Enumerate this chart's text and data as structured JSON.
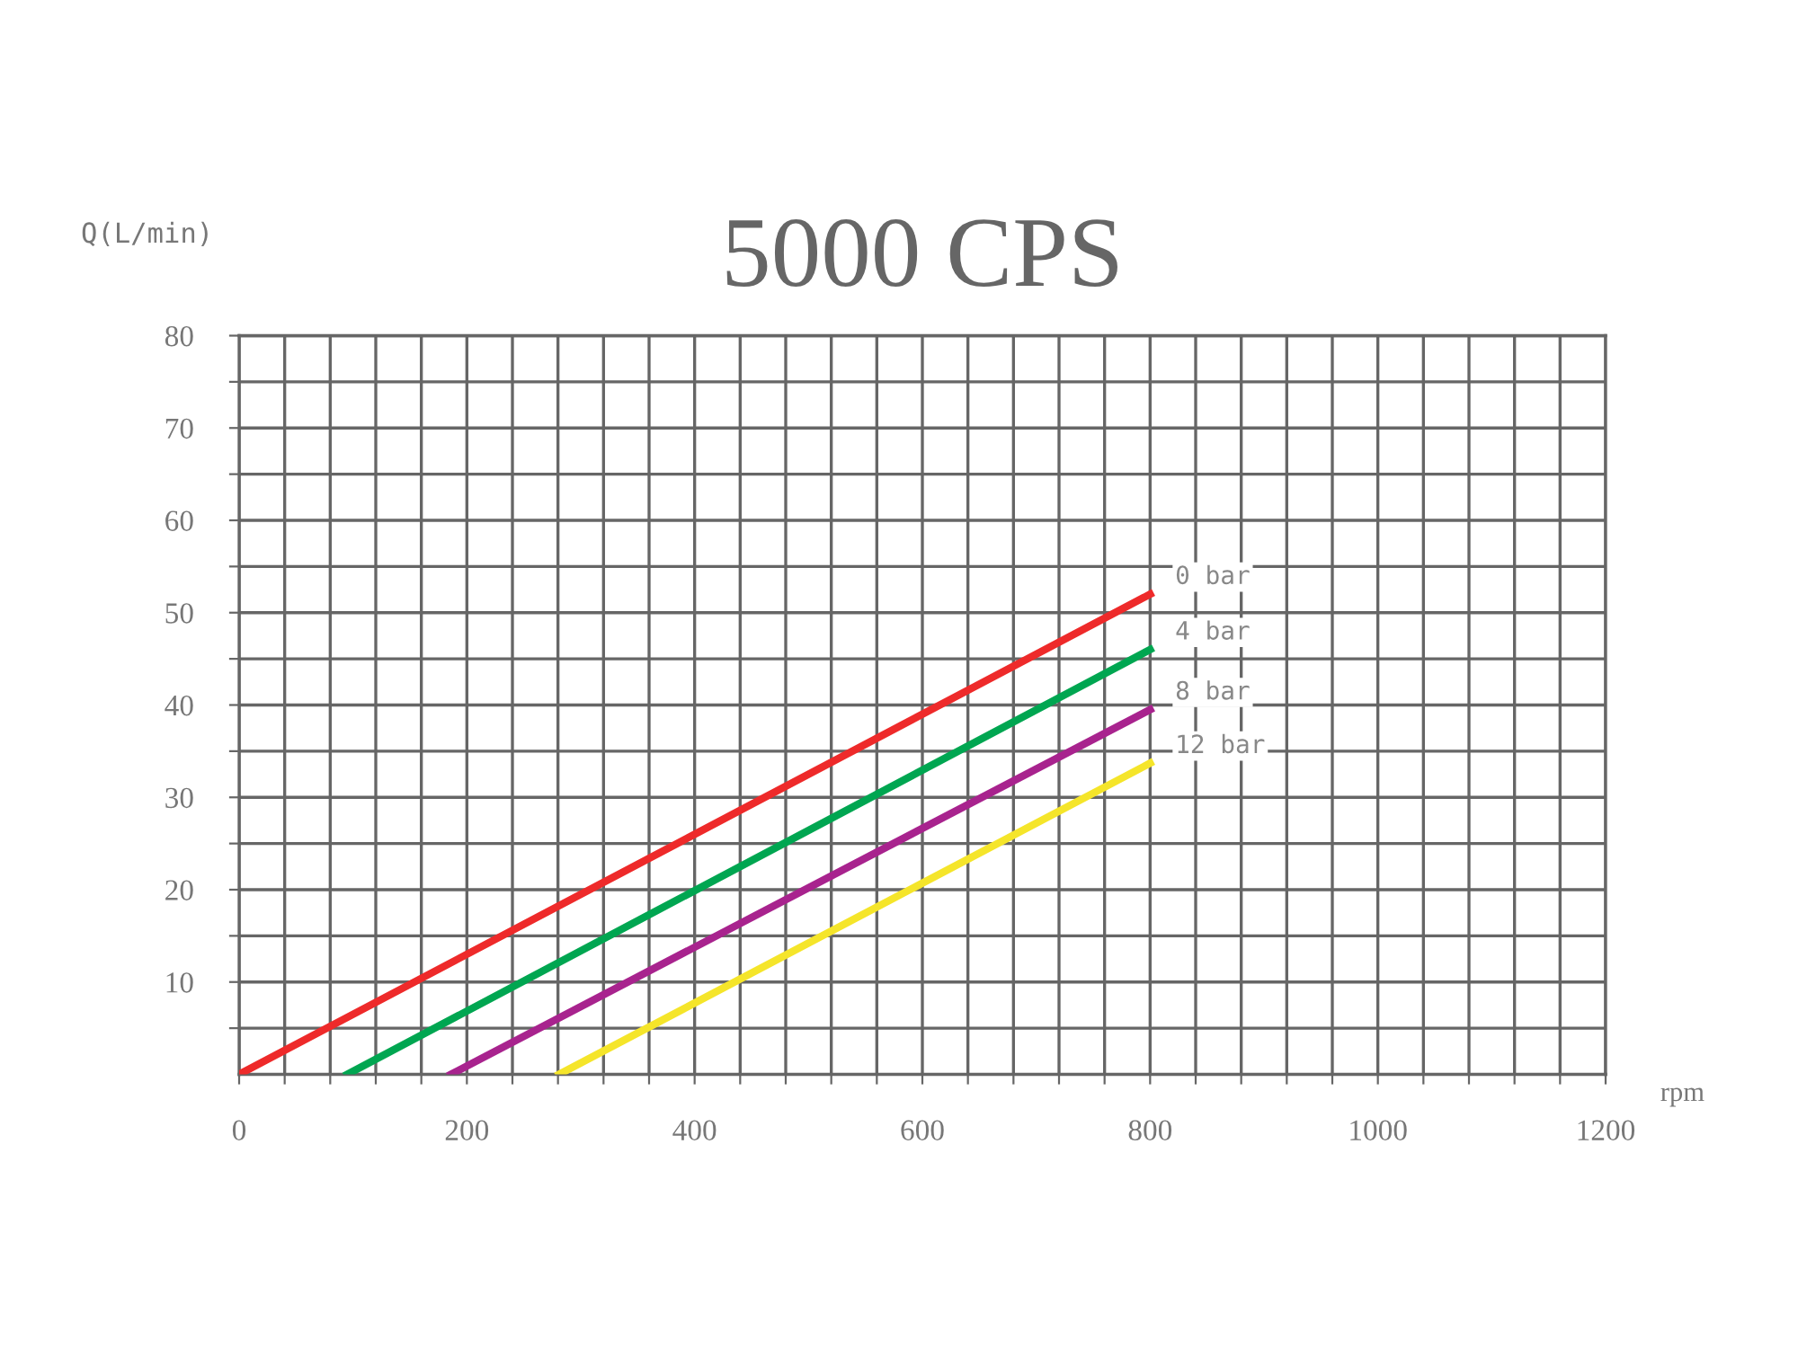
{
  "chart_data": {
    "type": "line",
    "title": "5000 CPS",
    "xlabel": "rpm",
    "ylabel": "Q(L/min)",
    "series": [
      {
        "name": "0 bar",
        "color": "#ee2a2a",
        "x": [
          0,
          800
        ],
        "values": [
          0,
          52
        ]
      },
      {
        "name": "4 bar",
        "color": "#00a651",
        "x": [
          95,
          800
        ],
        "values": [
          0,
          46
        ]
      },
      {
        "name": "8 bar",
        "color": "#a8238e",
        "x": [
          186,
          800
        ],
        "values": [
          0,
          39.5
        ]
      },
      {
        "name": "12 bar",
        "color": "#f5e52a",
        "x": [
          281,
          800
        ],
        "values": [
          0,
          33.7
        ]
      }
    ],
    "xlim": [
      0,
      1200
    ],
    "ylim": [
      0,
      80
    ],
    "xticks": [
      {
        "value": 0,
        "label": "0"
      },
      {
        "value": 40,
        "label": null
      },
      {
        "value": 80,
        "label": null
      },
      {
        "value": 120,
        "label": null
      },
      {
        "value": 160,
        "label": null
      },
      {
        "value": 200,
        "label": "200"
      },
      {
        "value": 240,
        "label": null
      },
      {
        "value": 280,
        "label": null
      },
      {
        "value": 320,
        "label": null
      },
      {
        "value": 360,
        "label": null
      },
      {
        "value": 400,
        "label": "400"
      },
      {
        "value": 440,
        "label": null
      },
      {
        "value": 480,
        "label": null
      },
      {
        "value": 520,
        "label": null
      },
      {
        "value": 560,
        "label": null
      },
      {
        "value": 600,
        "label": "600"
      },
      {
        "value": 640,
        "label": null
      },
      {
        "value": 680,
        "label": null
      },
      {
        "value": 720,
        "label": null
      },
      {
        "value": 760,
        "label": null
      },
      {
        "value": 800,
        "label": "800"
      },
      {
        "value": 840,
        "label": null
      },
      {
        "value": 880,
        "label": null
      },
      {
        "value": 920,
        "label": null
      },
      {
        "value": 960,
        "label": null
      },
      {
        "value": 1000,
        "label": "1000"
      },
      {
        "value": 1040,
        "label": null
      },
      {
        "value": 1080,
        "label": null
      },
      {
        "value": 1120,
        "label": null
      },
      {
        "value": 1160,
        "label": null
      },
      {
        "value": 1200,
        "label": "1200"
      }
    ],
    "yticks": [
      {
        "value": 5,
        "label": null
      },
      10,
      {
        "value": 15,
        "label": null
      },
      20,
      {
        "value": 25,
        "label": null
      },
      30,
      {
        "value": 35,
        "label": null
      },
      40,
      {
        "value": 45,
        "label": null
      },
      50,
      {
        "value": 55,
        "label": null
      },
      60,
      {
        "value": 65,
        "label": null
      },
      70,
      {
        "value": 75,
        "label": null
      },
      80
    ],
    "grid": true,
    "legend": false,
    "marker": "none",
    "line_style": "solid"
  }
}
